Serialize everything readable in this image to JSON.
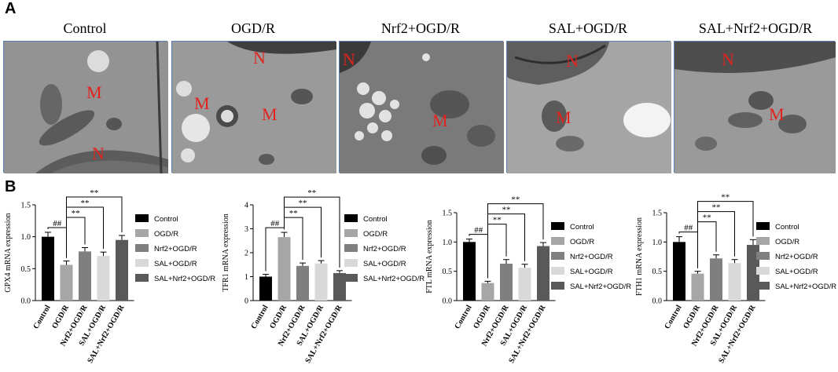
{
  "panel_a_label": "A",
  "panel_b_label": "B",
  "em_panels": [
    {
      "title": "Control",
      "labels": [
        "M",
        "N"
      ]
    },
    {
      "title": "OGD/R",
      "labels": [
        "N",
        "M",
        "M"
      ]
    },
    {
      "title": "Nrf2+OGD/R",
      "labels": [
        "N",
        "M"
      ]
    },
    {
      "title": "SAL+OGD/R",
      "labels": [
        "N",
        "M"
      ]
    },
    {
      "title": "SAL+Nrf2+OGD/R",
      "labels": [
        "N",
        "M"
      ]
    }
  ],
  "colors": {
    "control": "#000000",
    "ogdr": "#a6a6a6",
    "nrf2": "#7f7f7f",
    "sal": "#d9d9d9",
    "salnrf2": "#595959",
    "frame": "#5b7fb8",
    "em_label": "#e3221e"
  },
  "chart_data": [
    {
      "type": "bar",
      "ylabel": "GPX4 mRNA expression",
      "categories": [
        "Control",
        "OGD/R",
        "Nrf2+OGD/R",
        "SAL+OGD/R",
        "SAL+Nrf2+OGD/R"
      ],
      "values": [
        1.0,
        0.56,
        0.77,
        0.7,
        0.95
      ],
      "errors": [
        0.07,
        0.06,
        0.06,
        0.06,
        0.07
      ],
      "ylim": [
        0,
        1.5
      ],
      "yticks": [
        "0.0",
        "0.5",
        "1.0",
        "1.5"
      ],
      "sig": [
        {
          "from": 0,
          "to": 1,
          "label": "##"
        },
        {
          "from": 1,
          "to": 2,
          "label": "**"
        },
        {
          "from": 1,
          "to": 3,
          "label": "**"
        },
        {
          "from": 1,
          "to": 4,
          "label": "**"
        }
      ],
      "legend": [
        "Control",
        "OGD/R",
        "Nrf2+OGD/R",
        "SAL+OGD/R",
        "SAL+Nrf2+OGD/R"
      ]
    },
    {
      "type": "bar",
      "ylabel": "TFR1 mRNA expression",
      "categories": [
        "Control",
        "OGD/R",
        "Nrf2+OGD/R",
        "SAL+OGD/R",
        "SAL+Nrf2+OGD/R"
      ],
      "values": [
        1.0,
        2.65,
        1.45,
        1.55,
        1.15
      ],
      "errors": [
        0.1,
        0.2,
        0.12,
        0.12,
        0.1
      ],
      "ylim": [
        0,
        4
      ],
      "yticks": [
        "0",
        "1",
        "2",
        "3",
        "4"
      ],
      "sig": [
        {
          "from": 0,
          "to": 1,
          "label": "##"
        },
        {
          "from": 1,
          "to": 2,
          "label": "**"
        },
        {
          "from": 1,
          "to": 3,
          "label": "**"
        },
        {
          "from": 1,
          "to": 4,
          "label": "**"
        }
      ],
      "legend": [
        "Control",
        "OGD/R",
        "Nrf2+OGD/R",
        "SAL+OGD/R",
        "SAL+Nrf2+OGD/R"
      ]
    },
    {
      "type": "bar",
      "ylabel": "FTL mRNA expression",
      "categories": [
        "Control",
        "OGD/R",
        "Nrf2+OGD/R",
        "SAL+OGD/R",
        "SAL+Nrf2+OGD/R"
      ],
      "values": [
        1.0,
        0.3,
        0.63,
        0.56,
        0.93
      ],
      "errors": [
        0.05,
        0.03,
        0.07,
        0.06,
        0.06
      ],
      "ylim": [
        0,
        1.5
      ],
      "yticks": [
        "0.0",
        "0.5",
        "1.0",
        "1.5"
      ],
      "sig": [
        {
          "from": 0,
          "to": 1,
          "label": "##"
        },
        {
          "from": 1,
          "to": 2,
          "label": "**"
        },
        {
          "from": 1,
          "to": 3,
          "label": "**"
        },
        {
          "from": 1,
          "to": 4,
          "label": "**"
        }
      ],
      "legend": [
        "Control",
        "OGD/R",
        "Nrf2+OGD/R",
        "SAL+OGD/R",
        "SAL+Nrf2+OGD/R"
      ]
    },
    {
      "type": "bar",
      "ylabel": "FTH1 mRNA expression",
      "categories": [
        "Control",
        "OGD/R",
        "Nrf2+OGD/R",
        "SAL+OGD/R",
        "SAL+Nrf2+OGD/R"
      ],
      "values": [
        1.0,
        0.46,
        0.72,
        0.64,
        0.95
      ],
      "errors": [
        0.09,
        0.04,
        0.06,
        0.06,
        0.09
      ],
      "ylim": [
        0,
        1.5
      ],
      "yticks": [
        "0.0",
        "0.5",
        "1.0",
        "1.5"
      ],
      "sig": [
        {
          "from": 0,
          "to": 1,
          "label": "##"
        },
        {
          "from": 1,
          "to": 2,
          "label": "**"
        },
        {
          "from": 1,
          "to": 3,
          "label": "**"
        },
        {
          "from": 1,
          "to": 4,
          "label": "**"
        }
      ],
      "legend": [
        "Control",
        "OGD/R",
        "Nrf2+OGD/R",
        "SAL+OGD/R",
        "SAL+Nrf2+OGD/R"
      ]
    }
  ]
}
